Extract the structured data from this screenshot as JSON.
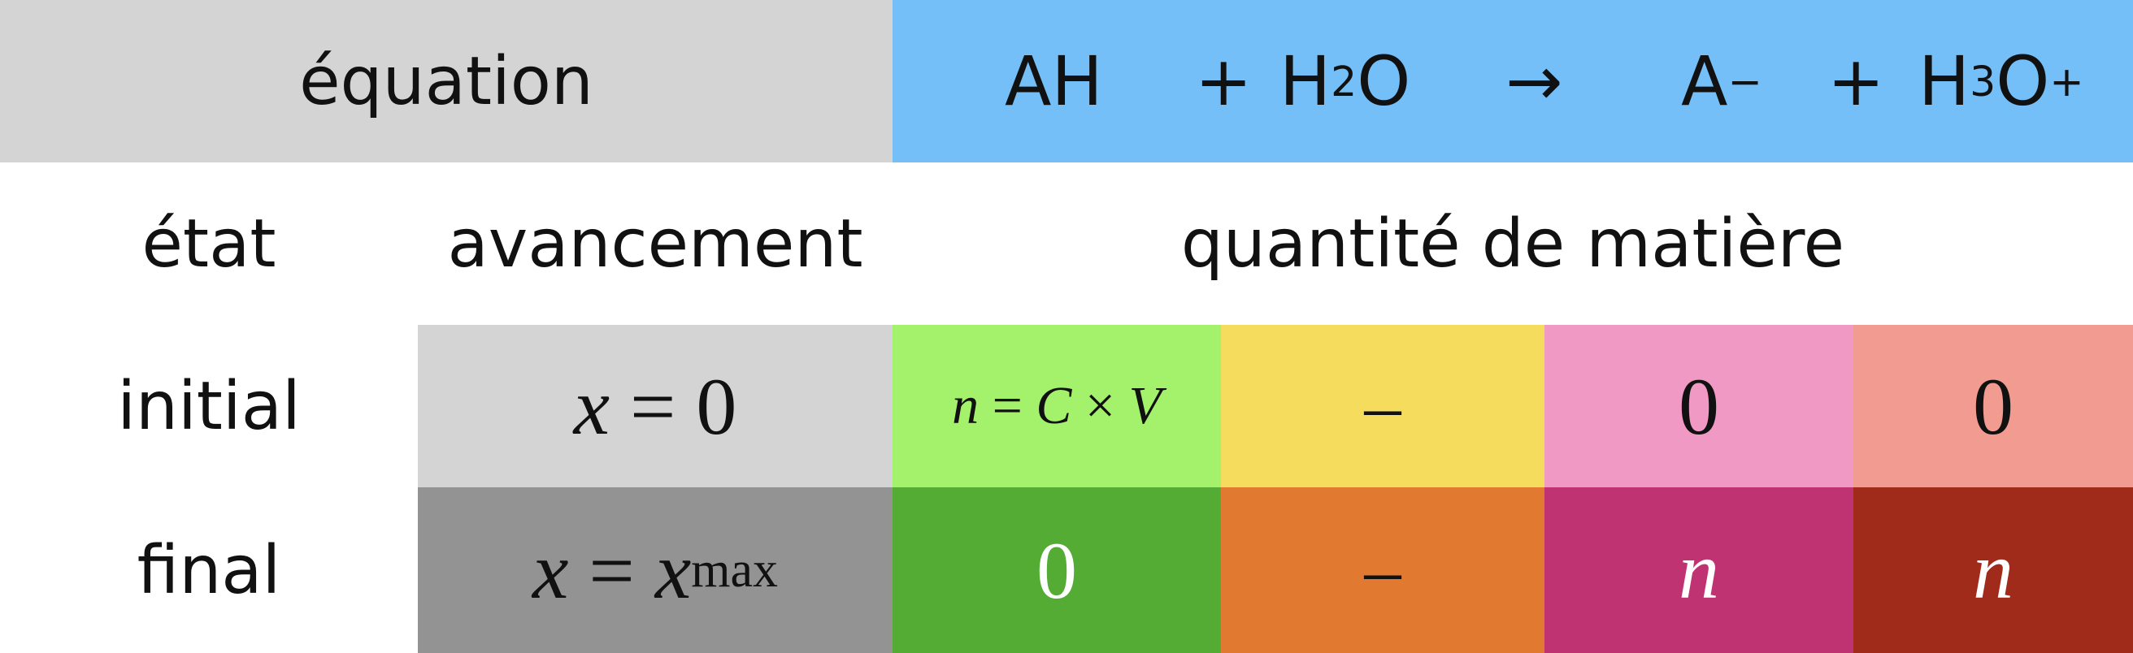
{
  "header": {
    "equation_label": "équation",
    "equation": {
      "reactant1": "AH",
      "plus1": "+",
      "reactant2_base": "H",
      "reactant2_sub": "2",
      "reactant2_rest": "O",
      "arrow": "→",
      "product1_base": "A",
      "product1_sup": "−",
      "plus2": "+",
      "product2_base": "H",
      "product2_sub": "3",
      "product2_rest": "O",
      "product2_sup": "+"
    }
  },
  "columns": {
    "state": "état",
    "progress": "avancement",
    "amount": "quantité de matière"
  },
  "rows": {
    "initial": {
      "label": "initial",
      "progress_var": "x",
      "progress_eq": "=",
      "progress_val": "0",
      "ah": {
        "n": "n",
        "eq": "=",
        "c": "C",
        "times": "×",
        "v": "V"
      },
      "h2o": "–",
      "a_minus": "0",
      "h3o_plus": "0"
    },
    "final": {
      "label": "final",
      "progress_var": "x",
      "progress_eq": "=",
      "progress_rhs_var": "x",
      "progress_rhs_sub": "max",
      "ah": "0",
      "h2o": "–",
      "a_minus": "n",
      "h3o_plus": "n"
    }
  },
  "colors": {
    "header_gray": "#d4d4d4",
    "header_blue": "#74bff8",
    "initial_progress": "#d4d4d4",
    "final_progress": "#939393",
    "ah_initial": "#a4f26b",
    "ah_final": "#55ac34",
    "h2o_initial": "#f6dc5d",
    "h2o_final": "#e17a30",
    "a_initial": "#f199c5",
    "a_final": "#c03373",
    "h3o_initial": "#f19b91",
    "h3o_final": "#a12b1b"
  }
}
